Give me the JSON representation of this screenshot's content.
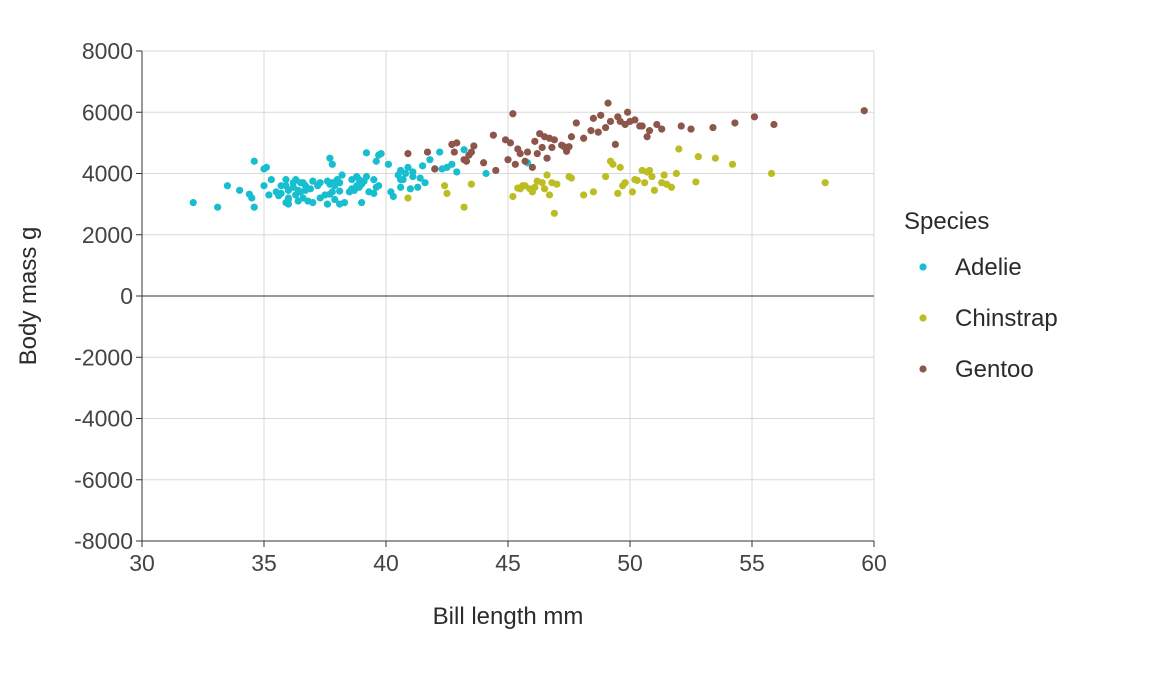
{
  "chart_data": {
    "type": "scatter",
    "title": "",
    "xlabel": "Bill length mm",
    "ylabel": "Body mass g",
    "xlim": [
      30,
      60
    ],
    "ylim": [
      -8000,
      8000
    ],
    "x_ticks": [
      "30",
      "35",
      "40",
      "45",
      "50",
      "55",
      "60"
    ],
    "y_ticks": [
      "-8000",
      "-6000",
      "-4000",
      "-2000",
      "0",
      "2000",
      "4000",
      "6000",
      "8000"
    ],
    "grid": true,
    "zero_line": true,
    "legend_title": "Species",
    "legend_position": "right",
    "series": [
      {
        "name": "Adelie",
        "color": "#17becf",
        "points": [
          [
            32.1,
            3050
          ],
          [
            33.1,
            2900
          ],
          [
            33.5,
            3600
          ],
          [
            34.0,
            3450
          ],
          [
            34.4,
            3325
          ],
          [
            34.5,
            3200
          ],
          [
            34.6,
            4400
          ],
          [
            34.6,
            2900
          ],
          [
            35.0,
            4150
          ],
          [
            35.0,
            3600
          ],
          [
            35.1,
            4200
          ],
          [
            35.2,
            3300
          ],
          [
            35.3,
            3800
          ],
          [
            35.5,
            3400
          ],
          [
            35.6,
            3275
          ],
          [
            35.7,
            3600
          ],
          [
            35.7,
            3350
          ],
          [
            35.9,
            3800
          ],
          [
            35.9,
            3600
          ],
          [
            35.9,
            3050
          ],
          [
            36.0,
            3450
          ],
          [
            36.0,
            3200
          ],
          [
            36.0,
            3150
          ],
          [
            36.0,
            3000
          ],
          [
            36.2,
            3550
          ],
          [
            36.2,
            3700
          ],
          [
            36.3,
            3300
          ],
          [
            36.3,
            3800
          ],
          [
            36.4,
            3450
          ],
          [
            36.4,
            3100
          ],
          [
            36.5,
            3400
          ],
          [
            36.5,
            3700
          ],
          [
            36.6,
            3700
          ],
          [
            36.6,
            3200
          ],
          [
            36.7,
            3600
          ],
          [
            36.7,
            3450
          ],
          [
            36.8,
            3100
          ],
          [
            36.9,
            3500
          ],
          [
            37.0,
            3050
          ],
          [
            37.0,
            3750
          ],
          [
            37.2,
            3600
          ],
          [
            37.3,
            3200
          ],
          [
            37.3,
            3700
          ],
          [
            37.5,
            3300
          ],
          [
            37.6,
            3000
          ],
          [
            37.6,
            3750
          ],
          [
            37.7,
            4500
          ],
          [
            37.7,
            3650
          ],
          [
            37.7,
            3325
          ],
          [
            37.8,
            3700
          ],
          [
            37.8,
            4300
          ],
          [
            37.8,
            3400
          ],
          [
            37.9,
            3150
          ],
          [
            37.9,
            3600
          ],
          [
            38.0,
            3800
          ],
          [
            38.1,
            3425
          ],
          [
            38.1,
            3700
          ],
          [
            38.1,
            3000
          ],
          [
            38.2,
            3950
          ],
          [
            38.3,
            3050
          ],
          [
            38.5,
            3400
          ],
          [
            38.6,
            3800
          ],
          [
            38.6,
            3500
          ],
          [
            38.7,
            3450
          ],
          [
            38.8,
            3900
          ],
          [
            38.8,
            3600
          ],
          [
            38.9,
            3800
          ],
          [
            38.9,
            3550
          ],
          [
            39.0,
            3650
          ],
          [
            39.0,
            3050
          ],
          [
            39.1,
            3750
          ],
          [
            39.2,
            4675
          ],
          [
            39.2,
            3900
          ],
          [
            39.3,
            3400
          ],
          [
            39.5,
            3800
          ],
          [
            39.5,
            3350
          ],
          [
            39.6,
            3550
          ],
          [
            39.6,
            4400
          ],
          [
            39.7,
            3600
          ],
          [
            39.7,
            4600
          ],
          [
            39.8,
            4650
          ],
          [
            40.1,
            4300
          ],
          [
            40.2,
            3400
          ],
          [
            40.3,
            3250
          ],
          [
            40.5,
            3950
          ],
          [
            40.6,
            3550
          ],
          [
            40.6,
            3800
          ],
          [
            40.6,
            4100
          ],
          [
            40.7,
            3800
          ],
          [
            40.8,
            4000
          ],
          [
            40.9,
            4200
          ],
          [
            41.0,
            3500
          ],
          [
            41.1,
            4050
          ],
          [
            41.1,
            3900
          ],
          [
            41.3,
            3550
          ],
          [
            41.4,
            3850
          ],
          [
            41.5,
            4250
          ],
          [
            41.6,
            3700
          ],
          [
            41.8,
            4450
          ],
          [
            42.0,
            4150
          ],
          [
            42.2,
            4700
          ],
          [
            42.3,
            4150
          ],
          [
            42.5,
            4200
          ],
          [
            42.7,
            4300
          ],
          [
            42.9,
            4050
          ],
          [
            43.2,
            4775
          ],
          [
            44.1,
            4000
          ],
          [
            45.8,
            4350
          ]
        ]
      },
      {
        "name": "Chinstrap",
        "color": "#bcbd22",
        "points": [
          [
            40.9,
            3200
          ],
          [
            42.4,
            3600
          ],
          [
            42.5,
            3350
          ],
          [
            43.2,
            2900
          ],
          [
            43.5,
            3650
          ],
          [
            45.2,
            3250
          ],
          [
            45.4,
            3525
          ],
          [
            45.5,
            3500
          ],
          [
            45.6,
            3600
          ],
          [
            45.7,
            3600
          ],
          [
            45.9,
            3500
          ],
          [
            46.0,
            3400
          ],
          [
            46.1,
            3550
          ],
          [
            46.2,
            3750
          ],
          [
            46.4,
            3700
          ],
          [
            46.5,
            3500
          ],
          [
            46.6,
            3950
          ],
          [
            46.7,
            3300
          ],
          [
            46.8,
            3700
          ],
          [
            46.9,
            2700
          ],
          [
            47.0,
            3650
          ],
          [
            47.5,
            3900
          ],
          [
            47.6,
            3850
          ],
          [
            48.1,
            3300
          ],
          [
            48.5,
            3400
          ],
          [
            49.0,
            3900
          ],
          [
            49.2,
            4400
          ],
          [
            49.3,
            4300
          ],
          [
            49.5,
            3350
          ],
          [
            49.6,
            4200
          ],
          [
            49.7,
            3600
          ],
          [
            49.8,
            3700
          ],
          [
            50.1,
            3400
          ],
          [
            50.2,
            3800
          ],
          [
            50.3,
            3775
          ],
          [
            50.5,
            4100
          ],
          [
            50.6,
            3700
          ],
          [
            50.7,
            4050
          ],
          [
            50.8,
            4100
          ],
          [
            50.9,
            3900
          ],
          [
            51.0,
            3450
          ],
          [
            51.3,
            3700
          ],
          [
            51.4,
            3950
          ],
          [
            51.5,
            3650
          ],
          [
            51.7,
            3550
          ],
          [
            51.9,
            4000
          ],
          [
            52.0,
            4800
          ],
          [
            52.7,
            3725
          ],
          [
            52.8,
            4550
          ],
          [
            53.5,
            4500
          ],
          [
            54.2,
            4300
          ],
          [
            55.8,
            4000
          ],
          [
            58.0,
            3700
          ]
        ]
      },
      {
        "name": "Gentoo",
        "color": "#8c564b",
        "points": [
          [
            40.9,
            4650
          ],
          [
            41.7,
            4700
          ],
          [
            42.0,
            4150
          ],
          [
            42.7,
            4950
          ],
          [
            42.8,
            4700
          ],
          [
            42.9,
            5000
          ],
          [
            43.2,
            4450
          ],
          [
            43.3,
            4400
          ],
          [
            43.4,
            4600
          ],
          [
            43.5,
            4700
          ],
          [
            43.6,
            4900
          ],
          [
            44.0,
            4350
          ],
          [
            44.4,
            5250
          ],
          [
            44.5,
            4100
          ],
          [
            44.9,
            5100
          ],
          [
            45.0,
            4450
          ],
          [
            45.1,
            5000
          ],
          [
            45.2,
            5950
          ],
          [
            45.3,
            4300
          ],
          [
            45.4,
            4800
          ],
          [
            45.5,
            4650
          ],
          [
            45.7,
            4400
          ],
          [
            45.8,
            4700
          ],
          [
            46.0,
            4200
          ],
          [
            46.1,
            5050
          ],
          [
            46.2,
            4650
          ],
          [
            46.3,
            5300
          ],
          [
            46.4,
            4850
          ],
          [
            46.5,
            5200
          ],
          [
            46.6,
            4500
          ],
          [
            46.7,
            5150
          ],
          [
            46.8,
            4850
          ],
          [
            46.9,
            5100
          ],
          [
            47.2,
            4925
          ],
          [
            47.3,
            4875
          ],
          [
            47.4,
            4725
          ],
          [
            47.5,
            4875
          ],
          [
            47.6,
            5200
          ],
          [
            47.8,
            5650
          ],
          [
            48.1,
            5150
          ],
          [
            48.4,
            5400
          ],
          [
            48.5,
            5800
          ],
          [
            48.7,
            5350
          ],
          [
            48.8,
            5900
          ],
          [
            49.0,
            5500
          ],
          [
            49.1,
            6300
          ],
          [
            49.2,
            5700
          ],
          [
            49.4,
            4950
          ],
          [
            49.5,
            5850
          ],
          [
            49.6,
            5700
          ],
          [
            49.8,
            5600
          ],
          [
            49.9,
            6000
          ],
          [
            50.0,
            5700
          ],
          [
            50.2,
            5750
          ],
          [
            50.4,
            5550
          ],
          [
            50.5,
            5550
          ],
          [
            50.7,
            5200
          ],
          [
            50.8,
            5400
          ],
          [
            51.1,
            5600
          ],
          [
            51.3,
            5450
          ],
          [
            52.1,
            5550
          ],
          [
            52.5,
            5450
          ],
          [
            53.4,
            5500
          ],
          [
            54.3,
            5650
          ],
          [
            55.1,
            5850
          ],
          [
            55.9,
            5600
          ],
          [
            59.6,
            6050
          ]
        ]
      }
    ]
  }
}
